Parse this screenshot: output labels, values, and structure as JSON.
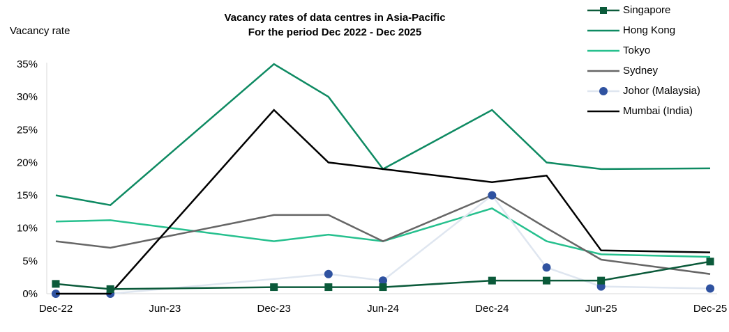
{
  "chart_data": {
    "type": "line",
    "title": "Vacancy rates of data centres in Asia-Pacific",
    "subtitle": "For the period Dec 2022 - Dec 2025",
    "ylabel": "Vacancy rate",
    "xlabel": "",
    "x": [
      "Dec-22",
      "Mar-23",
      "Jun-23",
      "Sep-23",
      "Dec-23",
      "Mar-24",
      "Jun-24",
      "Sep-24",
      "Dec-24",
      "Mar-25",
      "Jun-25",
      "Sep-25",
      "Dec-25"
    ],
    "x_tick_labels": [
      "Dec-22",
      "Jun-23",
      "Dec-23",
      "Jun-24",
      "Dec-24",
      "Jun-25",
      "Dec-25"
    ],
    "y_tick_labels": [
      "0%",
      "5%",
      "10%",
      "15%",
      "20%",
      "25%",
      "30%",
      "35%"
    ],
    "ylim": [
      0,
      35
    ],
    "grid": false,
    "legend_position": "top-right",
    "series": [
      {
        "name": "Singapore",
        "color": "#0b5a3a",
        "marker": "square",
        "values": [
          1.5,
          0.7,
          null,
          null,
          1.0,
          1.0,
          1.0,
          null,
          2.0,
          2.0,
          2.0,
          null,
          4.9
        ]
      },
      {
        "name": "Hong Kong",
        "color": "#0e8a62",
        "marker": "none",
        "values": [
          15,
          13.5,
          null,
          null,
          35,
          30,
          19,
          null,
          28,
          20,
          19,
          null,
          19.1
        ]
      },
      {
        "name": "Tokyo",
        "color": "#26c08e",
        "marker": "none",
        "values": [
          11,
          11.2,
          null,
          null,
          8,
          9,
          8,
          null,
          13,
          8,
          6,
          null,
          5.6
        ]
      },
      {
        "name": "Sydney",
        "color": "#666666",
        "marker": "none",
        "values": [
          8,
          7,
          null,
          null,
          12,
          12,
          8,
          null,
          15,
          10,
          5.2,
          null,
          3.0
        ]
      },
      {
        "name": "Johor (Malaysia)",
        "color": "#dfe6f0",
        "marker": "circle",
        "marker_color": "#2f52a0",
        "values": [
          0,
          0,
          null,
          null,
          null,
          3,
          2,
          null,
          15,
          4,
          1.1,
          null,
          0.8
        ]
      },
      {
        "name": "Mumbai (India)",
        "color": "#000000",
        "marker": "none",
        "values": [
          0,
          0,
          null,
          null,
          28,
          20,
          19,
          null,
          17,
          18,
          6.6,
          null,
          6.3
        ]
      }
    ]
  }
}
